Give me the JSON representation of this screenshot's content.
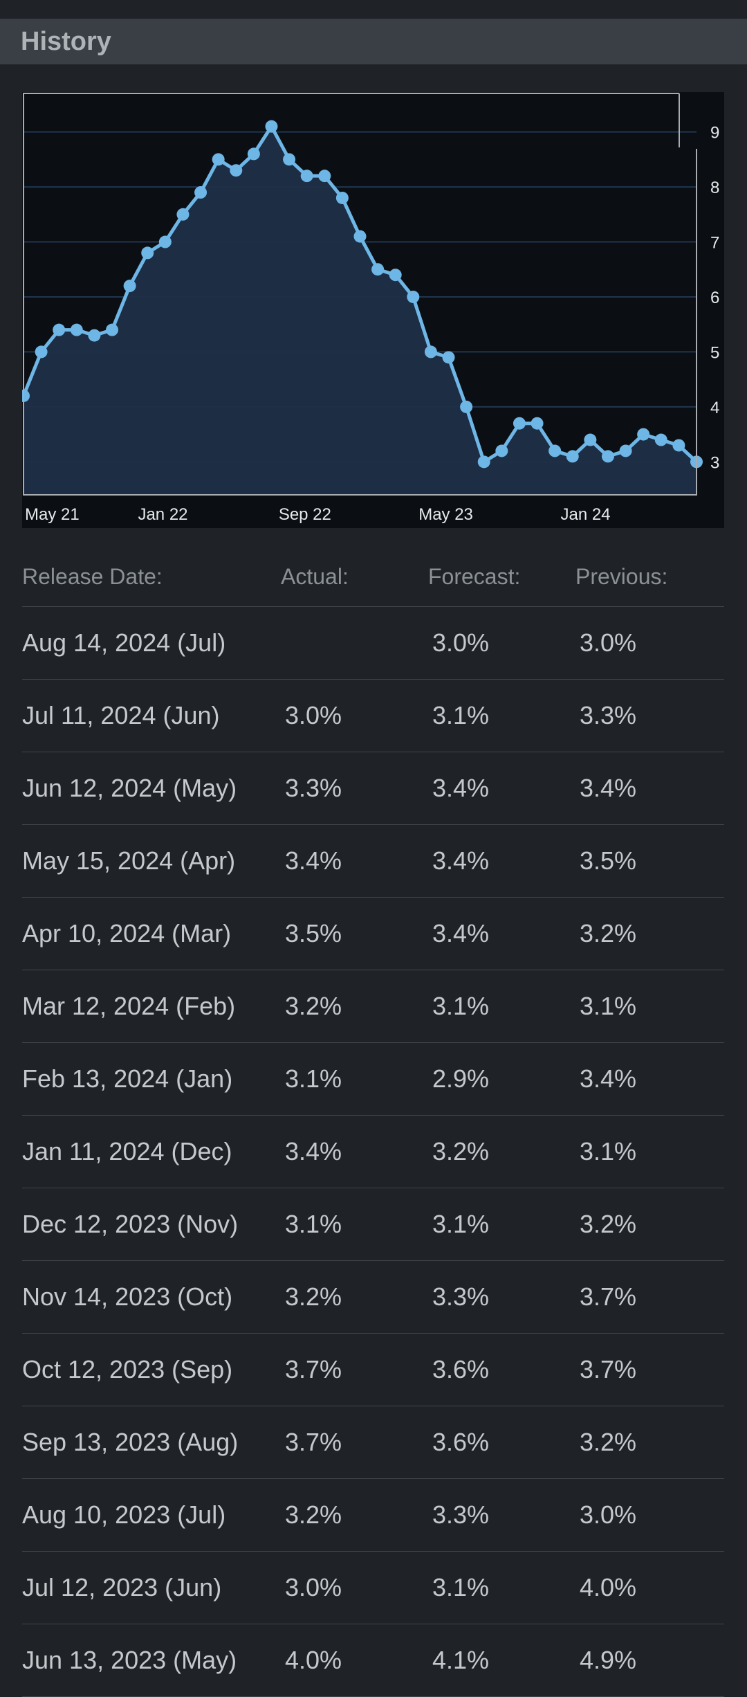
{
  "header": {
    "title": "History"
  },
  "colors": {
    "line": "#6eb6e6",
    "area": "#1f2f47",
    "grid": "#20364f",
    "positive": "#4fc24f",
    "negative": "#e05252"
  },
  "chart_data": {
    "type": "area",
    "title": "",
    "xlabel": "",
    "ylabel": "",
    "ylim": [
      2.4,
      9.7
    ],
    "yticks": [
      3,
      4,
      5,
      6,
      7,
      8,
      9
    ],
    "xtick_labels": [
      "May 21",
      "Jan 22",
      "Sep 22",
      "May 23",
      "Jan 24"
    ],
    "grid": true,
    "y_axis_position": "right",
    "series": [
      {
        "values": [
          4.2,
          5.0,
          5.4,
          5.4,
          5.3,
          5.4,
          6.2,
          6.8,
          7.0,
          7.5,
          7.9,
          8.5,
          8.3,
          8.6,
          9.1,
          8.5,
          8.2,
          8.2,
          7.8,
          7.1,
          6.5,
          6.4,
          6.0,
          5.0,
          4.9,
          4.0,
          3.0,
          3.2,
          3.7,
          3.7,
          3.2,
          3.1,
          3.4,
          3.1,
          3.2,
          3.5,
          3.4,
          3.3,
          3.0
        ]
      }
    ]
  },
  "table": {
    "headers": [
      "Release Date:",
      "Actual:",
      "Forecast:",
      "Previous:"
    ],
    "rows": [
      {
        "date": "Aug 14, 2024 (Jul)",
        "actual": "",
        "status": "neutral",
        "forecast": "3.0%",
        "previous": "3.0%"
      },
      {
        "date": "Jul 11, 2024 (Jun)",
        "actual": "3.0%",
        "status": "negative",
        "forecast": "3.1%",
        "previous": "3.3%"
      },
      {
        "date": "Jun 12, 2024 (May)",
        "actual": "3.3%",
        "status": "negative",
        "forecast": "3.4%",
        "previous": "3.4%"
      },
      {
        "date": "May 15, 2024 (Apr)",
        "actual": "3.4%",
        "status": "neutral",
        "forecast": "3.4%",
        "previous": "3.5%"
      },
      {
        "date": "Apr 10, 2024 (Mar)",
        "actual": "3.5%",
        "status": "positive",
        "forecast": "3.4%",
        "previous": "3.2%"
      },
      {
        "date": "Mar 12, 2024 (Feb)",
        "actual": "3.2%",
        "status": "positive",
        "forecast": "3.1%",
        "previous": "3.1%"
      },
      {
        "date": "Feb 13, 2024 (Jan)",
        "actual": "3.1%",
        "status": "positive",
        "forecast": "2.9%",
        "previous": "3.4%"
      },
      {
        "date": "Jan 11, 2024 (Dec)",
        "actual": "3.4%",
        "status": "positive",
        "forecast": "3.2%",
        "previous": "3.1%"
      },
      {
        "date": "Dec 12, 2023 (Nov)",
        "actual": "3.1%",
        "status": "neutral",
        "forecast": "3.1%",
        "previous": "3.2%"
      },
      {
        "date": "Nov 14, 2023 (Oct)",
        "actual": "3.2%",
        "status": "negative",
        "forecast": "3.3%",
        "previous": "3.7%"
      },
      {
        "date": "Oct 12, 2023 (Sep)",
        "actual": "3.7%",
        "status": "positive",
        "forecast": "3.6%",
        "previous": "3.7%"
      },
      {
        "date": "Sep 13, 2023 (Aug)",
        "actual": "3.7%",
        "status": "positive",
        "forecast": "3.6%",
        "previous": "3.2%"
      },
      {
        "date": "Aug 10, 2023 (Jul)",
        "actual": "3.2%",
        "status": "negative",
        "forecast": "3.3%",
        "previous": "3.0%"
      },
      {
        "date": "Jul 12, 2023 (Jun)",
        "actual": "3.0%",
        "status": "negative",
        "forecast": "3.1%",
        "previous": "4.0%"
      },
      {
        "date": "Jun 13, 2023 (May)",
        "actual": "4.0%",
        "status": "negative",
        "forecast": "4.1%",
        "previous": "4.9%"
      }
    ]
  }
}
